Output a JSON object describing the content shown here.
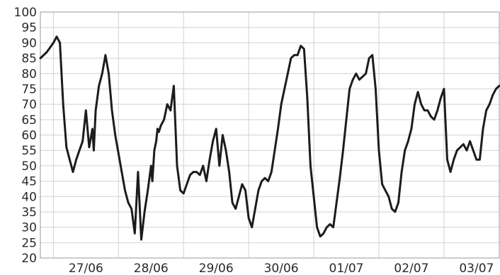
{
  "chart_data": {
    "type": "line",
    "title": "",
    "xlabel": "",
    "ylabel": "",
    "ylim": [
      20,
      100
    ],
    "y_ticks": [
      20,
      25,
      30,
      35,
      40,
      45,
      50,
      55,
      60,
      65,
      70,
      75,
      80,
      85,
      90,
      95,
      100
    ],
    "x_ticks": [
      "27/06",
      "28/06",
      "29/06",
      "30/06",
      "01/07",
      "02/07",
      "03/07"
    ],
    "x_range_days": [
      26.8,
      33.85
    ],
    "grid": true,
    "legend": "none",
    "line_color": "#1c1c1c",
    "series": [
      {
        "x": [
          26.8,
          26.9,
          27.0,
          27.05,
          27.1,
          27.15,
          27.2,
          27.25,
          27.3,
          27.35,
          27.4,
          27.45,
          27.5,
          27.55,
          27.6,
          27.62,
          27.65,
          27.7,
          27.75,
          27.8,
          27.85,
          27.9,
          27.95,
          28.0,
          28.05,
          28.1,
          28.15,
          28.2,
          28.25,
          28.3,
          28.35,
          28.4,
          28.45,
          28.5,
          28.52,
          28.55,
          28.58,
          28.6,
          28.62,
          28.65,
          28.7,
          28.75,
          28.8,
          28.85,
          28.9,
          28.95,
          29.0,
          29.05,
          29.1,
          29.15,
          29.2,
          29.25,
          29.3,
          29.35,
          29.4,
          29.45,
          29.5,
          29.55,
          29.6,
          29.65,
          29.7,
          29.75,
          29.8,
          29.85,
          29.9,
          29.95,
          30.0,
          30.05,
          30.1,
          30.15,
          30.2,
          30.25,
          30.3,
          30.35,
          30.4,
          30.45,
          30.5,
          30.55,
          30.6,
          30.65,
          30.7,
          30.75,
          30.8,
          30.85,
          30.9,
          30.95,
          31.0,
          31.05,
          31.1,
          31.15,
          31.2,
          31.25,
          31.3,
          31.35,
          31.4,
          31.45,
          31.5,
          31.55,
          31.6,
          31.65,
          31.7,
          31.75,
          31.8,
          31.85,
          31.9,
          31.95,
          32.0,
          32.05,
          32.1,
          32.15,
          32.2,
          32.25,
          32.3,
          32.35,
          32.4,
          32.45,
          32.5,
          32.55,
          32.6,
          32.65,
          32.7,
          32.75,
          32.8,
          32.85,
          32.9,
          32.95,
          33.0,
          33.05,
          33.1,
          33.15,
          33.2,
          33.25,
          33.3,
          33.35,
          33.4,
          33.45,
          33.5,
          33.55,
          33.6,
          33.65,
          33.7,
          33.75,
          33.8,
          33.85
        ],
        "values": [
          85,
          87,
          90,
          92,
          90,
          70,
          56,
          52,
          48,
          52,
          55,
          58,
          68,
          56,
          62,
          55,
          68,
          76,
          80,
          86,
          80,
          68,
          60,
          54,
          48,
          42,
          38,
          36,
          28,
          48,
          26,
          35,
          42,
          50,
          45,
          55,
          58,
          62,
          61,
          63,
          65,
          70,
          68,
          76,
          50,
          42,
          41,
          44,
          47,
          48,
          48,
          47,
          50,
          45,
          52,
          58,
          62,
          50,
          60,
          55,
          48,
          38,
          36,
          40,
          44,
          42,
          33,
          30,
          36,
          42,
          45,
          46,
          45,
          48,
          55,
          62,
          70,
          75,
          80,
          85,
          86,
          86,
          89,
          88,
          72,
          50,
          40,
          30,
          27,
          28,
          30,
          31,
          30,
          38,
          46,
          55,
          65,
          75,
          78,
          80,
          78,
          79,
          80,
          85,
          86,
          75,
          55,
          44,
          42,
          40,
          36,
          35,
          38,
          48,
          55,
          58,
          62,
          70,
          74,
          70,
          68,
          68,
          66,
          65,
          68,
          72,
          75,
          52,
          48,
          52,
          55,
          56,
          57,
          55,
          58,
          55,
          52,
          52,
          62,
          68,
          70,
          73,
          75,
          76
        ]
      }
    ]
  }
}
